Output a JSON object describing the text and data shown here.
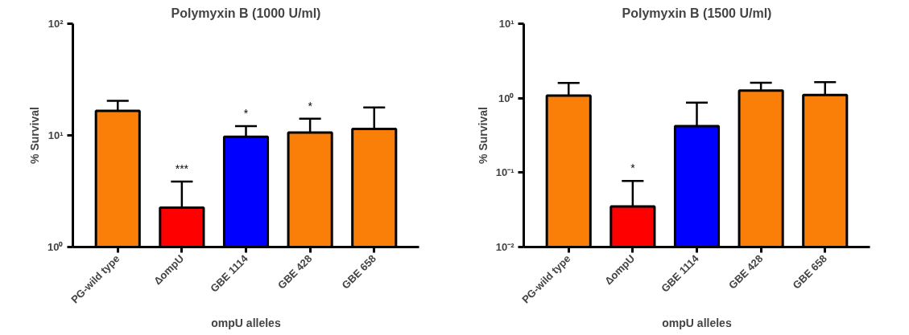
{
  "chart_data": [
    {
      "type": "bar",
      "title": "Polymyxin B (1000 U/ml)",
      "xlabel": "ompU alleles",
      "ylabel": "% Survival",
      "categories": [
        "PG-wild type",
        "ΔompU",
        "GBE 1114",
        "GBE 428",
        "GBE 658"
      ],
      "values": [
        16.6,
        2.25,
        9.7,
        10.6,
        11.4
      ],
      "colors": [
        "#fa7f08",
        "#fe0000",
        "#0000fe",
        "#fa7f08",
        "#fa7f08"
      ],
      "errors": [
        [
          16.6,
          20.4
        ],
        [
          2.25,
          3.85
        ],
        [
          9.7,
          12.1
        ],
        [
          10.6,
          14.1
        ],
        [
          11.4,
          17.8
        ]
      ],
      "log": true,
      "ylim": [
        1,
        100
      ],
      "yticks": [
        {
          "value": 1,
          "label": "10⁰"
        },
        {
          "value": 10,
          "label": "10¹"
        },
        {
          "value": 100,
          "label": "10²"
        }
      ],
      "value_labels": [
        null,
        "***",
        "*",
        "*",
        null
      ]
    },
    {
      "type": "bar",
      "title": "Polymyxin B (1500 U/ml)",
      "xlabel": "ompU alleles",
      "ylabel": "% Survival",
      "categories": [
        "PG-wild type",
        "ΔompU",
        "GBE 1114",
        "GBE 428",
        "GBE 658"
      ],
      "values": [
        1.08,
        0.035,
        0.42,
        1.26,
        1.1
      ],
      "colors": [
        "#fa7f08",
        "#fe0000",
        "#0000fe",
        "#fa7f08",
        "#fa7f08"
      ],
      "errors": [
        [
          1.08,
          1.6
        ],
        [
          0.035,
          0.077
        ],
        [
          0.42,
          0.87
        ],
        [
          1.26,
          1.61
        ],
        [
          1.1,
          1.64
        ]
      ],
      "log": true,
      "ylim": [
        0.01,
        10
      ],
      "yticks": [
        {
          "value": 0.01,
          "label": "10⁻²"
        },
        {
          "value": 0.1,
          "label": "10⁻¹"
        },
        {
          "value": 1,
          "label": "10⁰"
        },
        {
          "value": 10,
          "label": "10¹"
        }
      ],
      "value_labels": [
        null,
        "*",
        null,
        null,
        null
      ]
    }
  ]
}
